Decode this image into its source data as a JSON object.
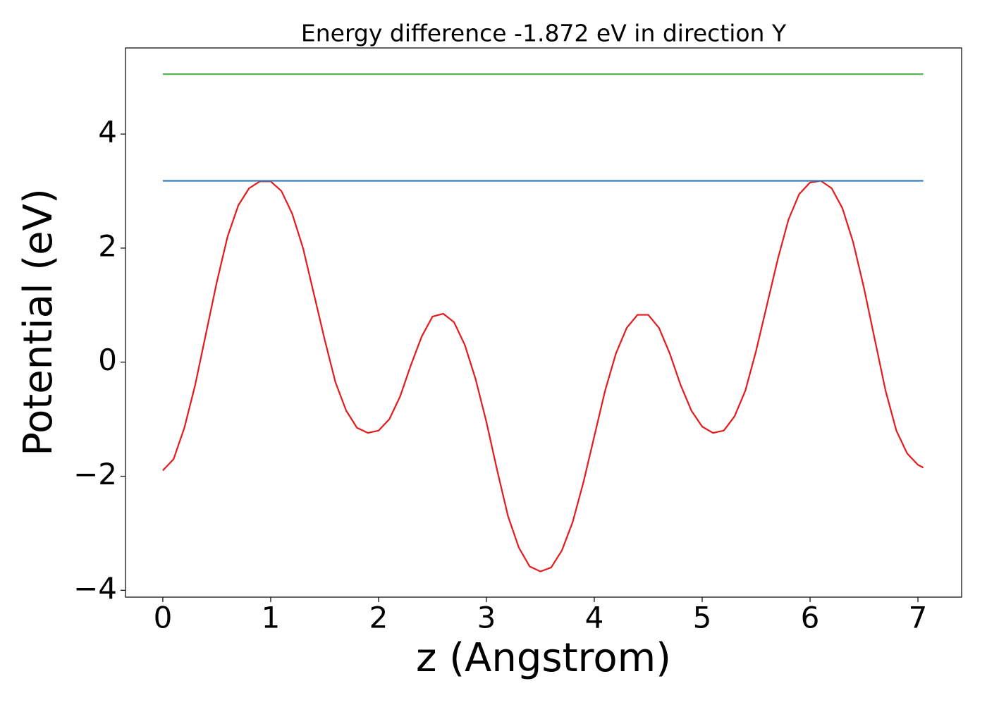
{
  "chart_data": {
    "type": "line",
    "title": "Energy difference -1.872 eV in direction Y",
    "xlabel": "z (Angstrom)",
    "ylabel": "Potential (eV)",
    "xlim": [
      -0.346,
      7.405
    ],
    "ylim": [
      -4.12,
      5.51
    ],
    "xticks": [
      0,
      1,
      2,
      3,
      4,
      5,
      6,
      7
    ],
    "yticks": [
      {
        "value": -4,
        "label": "−4"
      },
      {
        "value": -2,
        "label": "−2"
      },
      0,
      2,
      4
    ],
    "grid": false,
    "series": [
      {
        "color": "#e41a1c",
        "x": [
          0,
          0.1,
          0.2,
          0.3,
          0.4,
          0.5,
          0.6,
          0.7,
          0.8,
          0.9,
          1.0,
          1.1,
          1.2,
          1.3,
          1.4,
          1.5,
          1.6,
          1.7,
          1.8,
          1.9,
          2.0,
          2.1,
          2.2,
          2.3,
          2.4,
          2.5,
          2.6,
          2.7,
          2.8,
          2.9,
          3.0,
          3.1,
          3.2,
          3.3,
          3.4,
          3.5,
          3.6,
          3.7,
          3.8,
          3.9,
          4.0,
          4.1,
          4.2,
          4.3,
          4.4,
          4.5,
          4.6,
          4.7,
          4.8,
          4.9,
          5.0,
          5.1,
          5.2,
          5.3,
          5.4,
          5.5,
          5.6,
          5.7,
          5.8,
          5.9,
          6.0,
          6.1,
          6.2,
          6.3,
          6.4,
          6.5,
          6.6,
          6.7,
          6.8,
          6.9,
          7.0,
          7.05
        ],
        "values": [
          -1.9,
          -1.7,
          -1.15,
          -0.4,
          0.5,
          1.4,
          2.2,
          2.75,
          3.05,
          3.17,
          3.17,
          3.0,
          2.6,
          2.0,
          1.2,
          0.4,
          -0.35,
          -0.85,
          -1.15,
          -1.24,
          -1.2,
          -1.0,
          -0.6,
          -0.05,
          0.45,
          0.8,
          0.85,
          0.7,
          0.3,
          -0.3,
          -1.05,
          -1.9,
          -2.7,
          -3.25,
          -3.58,
          -3.67,
          -3.6,
          -3.3,
          -2.8,
          -2.1,
          -1.3,
          -0.5,
          0.15,
          0.6,
          0.83,
          0.83,
          0.6,
          0.15,
          -0.4,
          -0.85,
          -1.13,
          -1.24,
          -1.2,
          -0.95,
          -0.5,
          0.2,
          1.0,
          1.8,
          2.5,
          2.95,
          3.15,
          3.18,
          3.05,
          2.7,
          2.1,
          1.3,
          0.4,
          -0.5,
          -1.2,
          -1.6,
          -1.8,
          -1.85
        ]
      },
      {
        "color": "#377eb8",
        "x": [
          0,
          7.05
        ],
        "values": [
          3.18,
          3.18
        ]
      },
      {
        "color": "#4daf4a",
        "x": [
          0,
          7.05
        ],
        "values": [
          5.05,
          5.05
        ]
      }
    ]
  }
}
